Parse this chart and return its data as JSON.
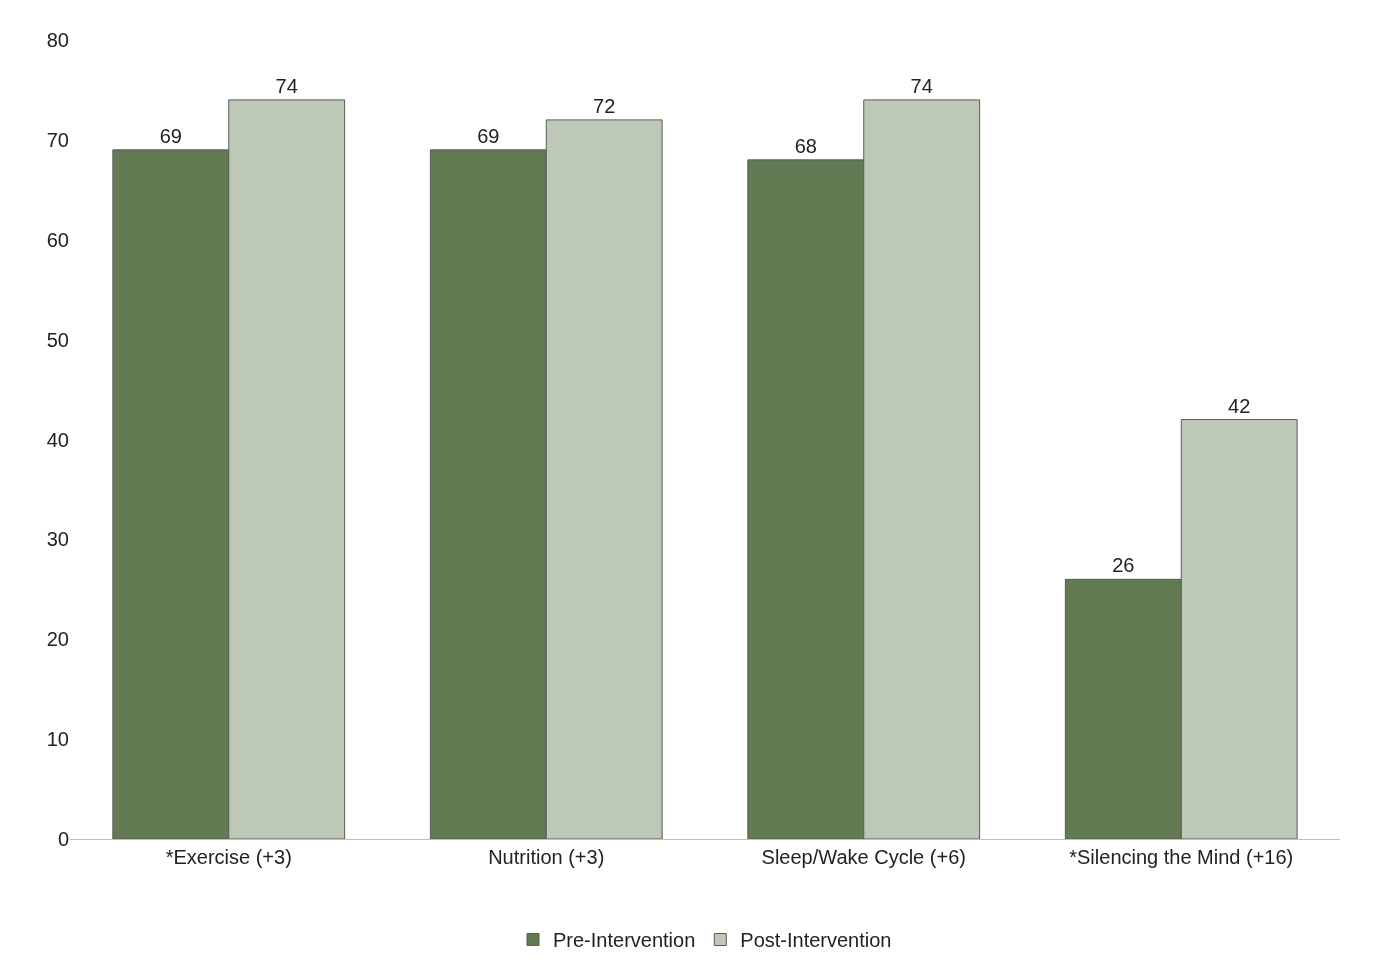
{
  "chart_data": {
    "type": "bar",
    "categories": [
      "*Exercise (+3)",
      "Nutrition (+3)",
      "Sleep/Wake Cycle (+6)",
      "*Silencing the Mind (+16)"
    ],
    "series": [
      {
        "name": "Pre-Intervention",
        "color": "#627b52",
        "values": [
          69,
          69,
          68,
          26
        ]
      },
      {
        "name": "Post-Intervention",
        "color": "#bdc9b6",
        "values": [
          74,
          72,
          74,
          42
        ]
      }
    ],
    "ylim": [
      0,
      80
    ],
    "yticks": [
      0,
      10,
      20,
      30,
      40,
      50,
      60,
      70,
      80
    ],
    "legend": "bottom",
    "data_labels": true
  }
}
